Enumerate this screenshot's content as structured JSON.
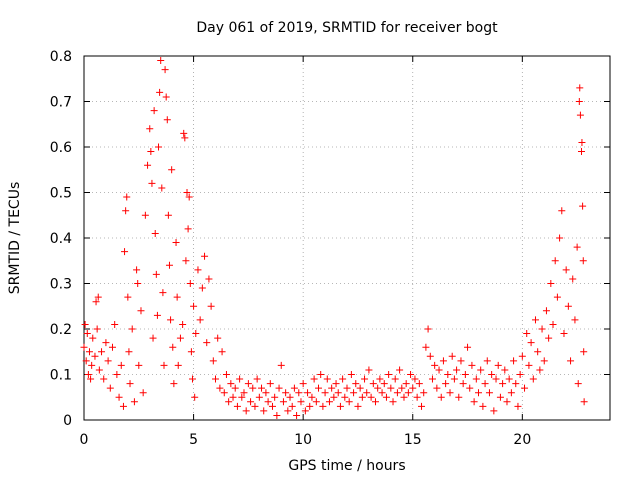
{
  "chart_data": {
    "type": "scatter",
    "title": "Day 061 of 2019, SRMTID for receiver bogt",
    "xlabel": "GPS time / hours",
    "ylabel": "SRMTID / TECUs",
    "xlim": [
      0,
      24
    ],
    "ylim": [
      0,
      0.8
    ],
    "xticks": [
      0,
      5,
      10,
      15,
      20
    ],
    "xtick_labels": [
      "0",
      "5",
      "10",
      "15",
      "20"
    ],
    "yticks": [
      0,
      0.1,
      0.2,
      0.3,
      0.4,
      0.5,
      0.6,
      0.7,
      0.8
    ],
    "ytick_labels": [
      "0",
      "0.1",
      "0.2",
      "0.3",
      "0.4",
      "0.5",
      "0.6",
      "0.7",
      "0.8"
    ],
    "grid": true,
    "marker": "+",
    "color": "#ff0000",
    "series": [
      {
        "name": "SRMTID",
        "points": [
          [
            0.0,
            0.16
          ],
          [
            0.05,
            0.21
          ],
          [
            0.1,
            0.13
          ],
          [
            0.15,
            0.19
          ],
          [
            0.2,
            0.1
          ],
          [
            0.25,
            0.15
          ],
          [
            0.3,
            0.09
          ],
          [
            0.35,
            0.12
          ],
          [
            0.4,
            0.18
          ],
          [
            0.5,
            0.14
          ],
          [
            0.55,
            0.26
          ],
          [
            0.6,
            0.2
          ],
          [
            0.65,
            0.27
          ],
          [
            0.7,
            0.11
          ],
          [
            0.8,
            0.15
          ],
          [
            0.9,
            0.09
          ],
          [
            1.0,
            0.17
          ],
          [
            1.1,
            0.13
          ],
          [
            1.2,
            0.07
          ],
          [
            1.3,
            0.16
          ],
          [
            1.4,
            0.21
          ],
          [
            1.5,
            0.1
          ],
          [
            1.6,
            0.05
          ],
          [
            1.7,
            0.12
          ],
          [
            1.8,
            0.03
          ],
          [
            1.85,
            0.37
          ],
          [
            1.9,
            0.46
          ],
          [
            1.95,
            0.49
          ],
          [
            2.0,
            0.27
          ],
          [
            2.05,
            0.15
          ],
          [
            2.1,
            0.08
          ],
          [
            2.2,
            0.2
          ],
          [
            2.3,
            0.04
          ],
          [
            2.4,
            0.33
          ],
          [
            2.45,
            0.3
          ],
          [
            2.5,
            0.12
          ],
          [
            2.6,
            0.24
          ],
          [
            2.7,
            0.06
          ],
          [
            2.8,
            0.45
          ],
          [
            2.9,
            0.56
          ],
          [
            3.0,
            0.64
          ],
          [
            3.05,
            0.59
          ],
          [
            3.1,
            0.52
          ],
          [
            3.15,
            0.18
          ],
          [
            3.2,
            0.68
          ],
          [
            3.25,
            0.41
          ],
          [
            3.3,
            0.32
          ],
          [
            3.35,
            0.23
          ],
          [
            3.4,
            0.6
          ],
          [
            3.45,
            0.72
          ],
          [
            3.5,
            0.79
          ],
          [
            3.55,
            0.51
          ],
          [
            3.6,
            0.28
          ],
          [
            3.65,
            0.12
          ],
          [
            3.7,
            0.77
          ],
          [
            3.75,
            0.71
          ],
          [
            3.8,
            0.66
          ],
          [
            3.85,
            0.45
          ],
          [
            3.9,
            0.34
          ],
          [
            3.95,
            0.22
          ],
          [
            4.0,
            0.55
          ],
          [
            4.05,
            0.16
          ],
          [
            4.1,
            0.08
          ],
          [
            4.2,
            0.39
          ],
          [
            4.25,
            0.27
          ],
          [
            4.3,
            0.12
          ],
          [
            4.4,
            0.18
          ],
          [
            4.5,
            0.21
          ],
          [
            4.55,
            0.63
          ],
          [
            4.6,
            0.62
          ],
          [
            4.65,
            0.35
          ],
          [
            4.7,
            0.5
          ],
          [
            4.75,
            0.42
          ],
          [
            4.8,
            0.49
          ],
          [
            4.85,
            0.3
          ],
          [
            4.9,
            0.15
          ],
          [
            4.95,
            0.09
          ],
          [
            5.0,
            0.25
          ],
          [
            5.05,
            0.05
          ],
          [
            5.1,
            0.19
          ],
          [
            5.2,
            0.33
          ],
          [
            5.3,
            0.22
          ],
          [
            5.4,
            0.29
          ],
          [
            5.5,
            0.36
          ],
          [
            5.6,
            0.17
          ],
          [
            5.7,
            0.31
          ],
          [
            5.8,
            0.25
          ],
          [
            5.9,
            0.13
          ],
          [
            6.0,
            0.09
          ],
          [
            6.1,
            0.18
          ],
          [
            6.2,
            0.07
          ],
          [
            6.3,
            0.15
          ],
          [
            6.4,
            0.06
          ],
          [
            6.5,
            0.1
          ],
          [
            6.6,
            0.04
          ],
          [
            6.7,
            0.08
          ],
          [
            6.8,
            0.05
          ],
          [
            6.9,
            0.07
          ],
          [
            7.0,
            0.03
          ],
          [
            7.1,
            0.09
          ],
          [
            7.2,
            0.05
          ],
          [
            7.3,
            0.06
          ],
          [
            7.4,
            0.02
          ],
          [
            7.5,
            0.08
          ],
          [
            7.6,
            0.04
          ],
          [
            7.7,
            0.07
          ],
          [
            7.8,
            0.03
          ],
          [
            7.9,
            0.09
          ],
          [
            8.0,
            0.05
          ],
          [
            8.1,
            0.07
          ],
          [
            8.2,
            0.02
          ],
          [
            8.3,
            0.06
          ],
          [
            8.4,
            0.04
          ],
          [
            8.5,
            0.08
          ],
          [
            8.6,
            0.03
          ],
          [
            8.7,
            0.05
          ],
          [
            8.8,
            0.01
          ],
          [
            8.9,
            0.07
          ],
          [
            9.0,
            0.12
          ],
          [
            9.1,
            0.04
          ],
          [
            9.2,
            0.06
          ],
          [
            9.3,
            0.02
          ],
          [
            9.4,
            0.05
          ],
          [
            9.5,
            0.03
          ],
          [
            9.6,
            0.07
          ],
          [
            9.7,
            0.01
          ],
          [
            9.8,
            0.06
          ],
          [
            9.9,
            0.04
          ],
          [
            10.0,
            0.08
          ],
          [
            10.1,
            0.02
          ],
          [
            10.2,
            0.06
          ],
          [
            10.3,
            0.03
          ],
          [
            10.4,
            0.05
          ],
          [
            10.5,
            0.09
          ],
          [
            10.6,
            0.04
          ],
          [
            10.7,
            0.07
          ],
          [
            10.8,
            0.1
          ],
          [
            10.9,
            0.03
          ],
          [
            11.0,
            0.06
          ],
          [
            11.1,
            0.09
          ],
          [
            11.2,
            0.04
          ],
          [
            11.3,
            0.07
          ],
          [
            11.4,
            0.05
          ],
          [
            11.5,
            0.08
          ],
          [
            11.6,
            0.06
          ],
          [
            11.7,
            0.03
          ],
          [
            11.8,
            0.09
          ],
          [
            11.9,
            0.05
          ],
          [
            12.0,
            0.07
          ],
          [
            12.1,
            0.04
          ],
          [
            12.2,
            0.1
          ],
          [
            12.3,
            0.06
          ],
          [
            12.4,
            0.08
          ],
          [
            12.5,
            0.03
          ],
          [
            12.6,
            0.07
          ],
          [
            12.7,
            0.05
          ],
          [
            12.8,
            0.09
          ],
          [
            12.9,
            0.06
          ],
          [
            13.0,
            0.11
          ],
          [
            13.1,
            0.05
          ],
          [
            13.2,
            0.08
          ],
          [
            13.3,
            0.04
          ],
          [
            13.4,
            0.07
          ],
          [
            13.5,
            0.09
          ],
          [
            13.6,
            0.06
          ],
          [
            13.7,
            0.08
          ],
          [
            13.8,
            0.05
          ],
          [
            13.9,
            0.1
          ],
          [
            14.0,
            0.07
          ],
          [
            14.1,
            0.04
          ],
          [
            14.2,
            0.09
          ],
          [
            14.3,
            0.06
          ],
          [
            14.4,
            0.11
          ],
          [
            14.5,
            0.07
          ],
          [
            14.6,
            0.05
          ],
          [
            14.7,
            0.08
          ],
          [
            14.8,
            0.06
          ],
          [
            14.9,
            0.1
          ],
          [
            15.0,
            0.07
          ],
          [
            15.1,
            0.09
          ],
          [
            15.2,
            0.05
          ],
          [
            15.3,
            0.08
          ],
          [
            15.4,
            0.03
          ],
          [
            15.5,
            0.06
          ],
          [
            15.6,
            0.16
          ],
          [
            15.7,
            0.2
          ],
          [
            15.8,
            0.14
          ],
          [
            15.9,
            0.09
          ],
          [
            16.0,
            0.12
          ],
          [
            16.1,
            0.07
          ],
          [
            16.2,
            0.11
          ],
          [
            16.3,
            0.05
          ],
          [
            16.4,
            0.13
          ],
          [
            16.5,
            0.08
          ],
          [
            16.6,
            0.1
          ],
          [
            16.7,
            0.06
          ],
          [
            16.8,
            0.14
          ],
          [
            16.9,
            0.09
          ],
          [
            17.0,
            0.11
          ],
          [
            17.1,
            0.05
          ],
          [
            17.2,
            0.13
          ],
          [
            17.3,
            0.08
          ],
          [
            17.4,
            0.1
          ],
          [
            17.5,
            0.16
          ],
          [
            17.6,
            0.07
          ],
          [
            17.7,
            0.12
          ],
          [
            17.8,
            0.04
          ],
          [
            17.9,
            0.09
          ],
          [
            18.0,
            0.06
          ],
          [
            18.1,
            0.11
          ],
          [
            18.2,
            0.03
          ],
          [
            18.3,
            0.08
          ],
          [
            18.4,
            0.13
          ],
          [
            18.5,
            0.06
          ],
          [
            18.6,
            0.1
          ],
          [
            18.7,
            0.02
          ],
          [
            18.8,
            0.09
          ],
          [
            18.9,
            0.12
          ],
          [
            19.0,
            0.05
          ],
          [
            19.1,
            0.08
          ],
          [
            19.2,
            0.11
          ],
          [
            19.3,
            0.04
          ],
          [
            19.4,
            0.09
          ],
          [
            19.5,
            0.06
          ],
          [
            19.6,
            0.13
          ],
          [
            19.7,
            0.08
          ],
          [
            19.8,
            0.03
          ],
          [
            19.9,
            0.1
          ],
          [
            20.0,
            0.14
          ],
          [
            20.1,
            0.07
          ],
          [
            20.2,
            0.19
          ],
          [
            20.3,
            0.12
          ],
          [
            20.4,
            0.17
          ],
          [
            20.5,
            0.09
          ],
          [
            20.6,
            0.22
          ],
          [
            20.7,
            0.15
          ],
          [
            20.8,
            0.11
          ],
          [
            20.9,
            0.2
          ],
          [
            21.0,
            0.13
          ],
          [
            21.1,
            0.24
          ],
          [
            21.2,
            0.18
          ],
          [
            21.3,
            0.3
          ],
          [
            21.4,
            0.21
          ],
          [
            21.5,
            0.35
          ],
          [
            21.6,
            0.27
          ],
          [
            21.7,
            0.4
          ],
          [
            21.8,
            0.46
          ],
          [
            21.9,
            0.19
          ],
          [
            22.0,
            0.33
          ],
          [
            22.1,
            0.25
          ],
          [
            22.2,
            0.13
          ],
          [
            22.3,
            0.31
          ],
          [
            22.4,
            0.22
          ],
          [
            22.5,
            0.38
          ],
          [
            22.55,
            0.08
          ],
          [
            22.6,
            0.7
          ],
          [
            22.62,
            0.73
          ],
          [
            22.65,
            0.67
          ],
          [
            22.7,
            0.59
          ],
          [
            22.72,
            0.61
          ],
          [
            22.75,
            0.47
          ],
          [
            22.78,
            0.35
          ],
          [
            22.8,
            0.15
          ],
          [
            22.82,
            0.04
          ]
        ]
      }
    ]
  }
}
